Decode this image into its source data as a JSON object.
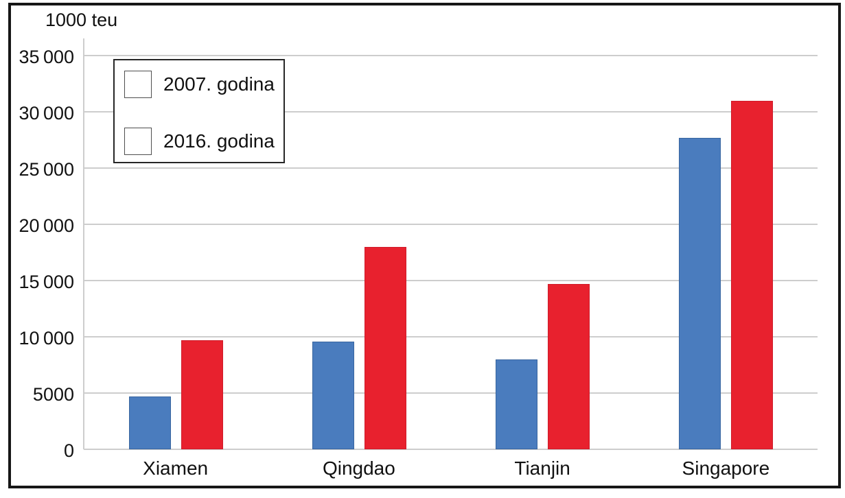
{
  "chart_data": {
    "type": "bar",
    "title": "1000 teu",
    "unit_label": "1000 teu",
    "categories": [
      "Xiamen",
      "Qingdao",
      "Tianjin",
      "Singapore"
    ],
    "series": [
      {
        "name": "2007. godina",
        "color": "#4a7cbe",
        "values": [
          4700,
          9600,
          8000,
          27700
        ]
      },
      {
        "name": "2016. godina",
        "color": "#e8212e",
        "values": [
          9700,
          18000,
          14700,
          31000
        ]
      }
    ],
    "ylabel": "1000 teu",
    "ylim": [
      0,
      35000
    ],
    "ytick_step": 5000,
    "ytick_labels": [
      "0",
      "5000",
      "10 000",
      "15 000",
      "20 000",
      "25 000",
      "30 000",
      "35 000"
    ],
    "grid": true,
    "legend_position": "top-left",
    "colors": {
      "background": "#ffffff",
      "gridline": "#cdcdcd",
      "axis_line": "#c2c2c2",
      "text": "#111111",
      "frame_border": "#161616",
      "legend_border": "#262626",
      "series_2007": "#4a7cbe",
      "series_2016": "#e8212e"
    }
  }
}
